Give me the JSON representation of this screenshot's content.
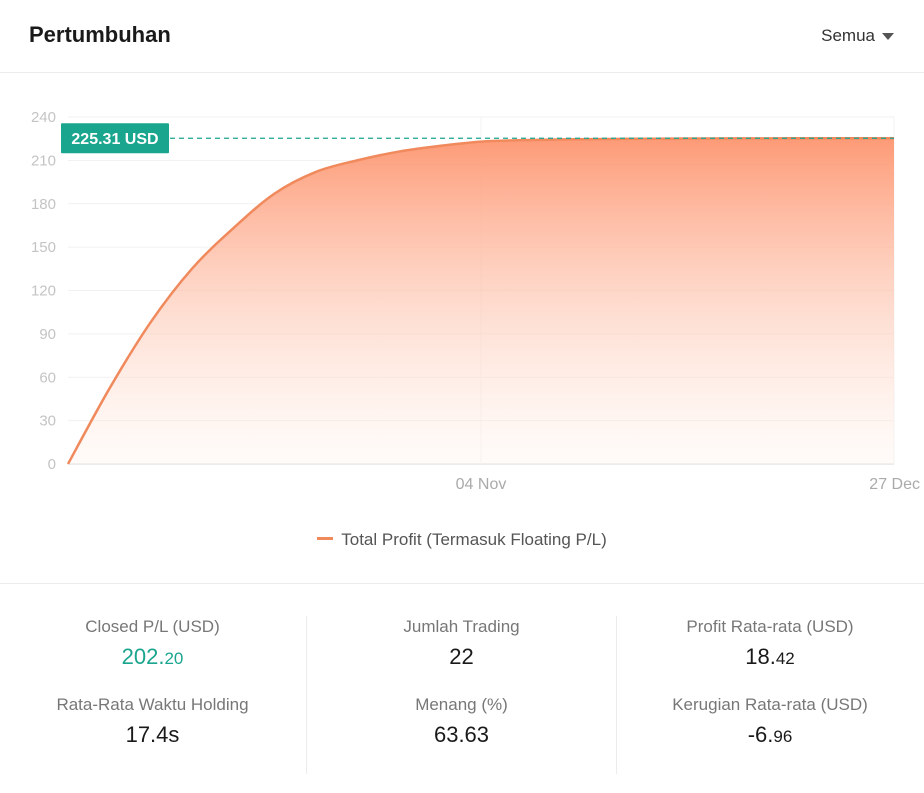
{
  "header": {
    "title": "Pertumbuhan",
    "filter_label": "Semua"
  },
  "icons": {
    "filter_caret": "caret-down-icon"
  },
  "colors": {
    "line": "#f08a5d",
    "fill_top": "#fd9a76",
    "marker": "#1aa58f",
    "positive": "#1aa58f"
  },
  "chart_data": {
    "type": "area",
    "ylim": [
      0,
      240
    ],
    "yticks": [
      0,
      30,
      60,
      90,
      120,
      150,
      180,
      210,
      240
    ],
    "xticks": [
      "04 Nov",
      "27 Dec"
    ],
    "x_tick_index": [
      10,
      20
    ],
    "series": [
      {
        "name": "Total Profit (Termasuk Floating P/L)",
        "values": [
          0,
          52,
          98,
          135,
          163,
          187,
          202,
          210,
          216,
          220,
          223,
          224,
          224.5,
          224.8,
          225,
          225.1,
          225.2,
          225.25,
          225.28,
          225.3,
          225.31
        ]
      }
    ],
    "current_value": 225.31,
    "current_label": "225.31 USD",
    "grid": true
  },
  "legend": {
    "label": "Total Profit (Termasuk Floating P/L)"
  },
  "stats": {
    "closed_pl": {
      "label": "Closed P/L (USD)",
      "int": "202.",
      "dec": "20"
    },
    "avg_holding": {
      "label": "Rata-Rata Waktu Holding",
      "value": "17.4s"
    },
    "trades": {
      "label": "Jumlah Trading",
      "value": "22"
    },
    "win_pct": {
      "label": "Menang (%)",
      "value": "63.63"
    },
    "avg_profit": {
      "label": "Profit Rata-rata (USD)",
      "int": "18.",
      "dec": "42"
    },
    "avg_loss": {
      "label": "Kerugian Rata-rata (USD)",
      "int": "-6.",
      "dec": "96"
    }
  }
}
